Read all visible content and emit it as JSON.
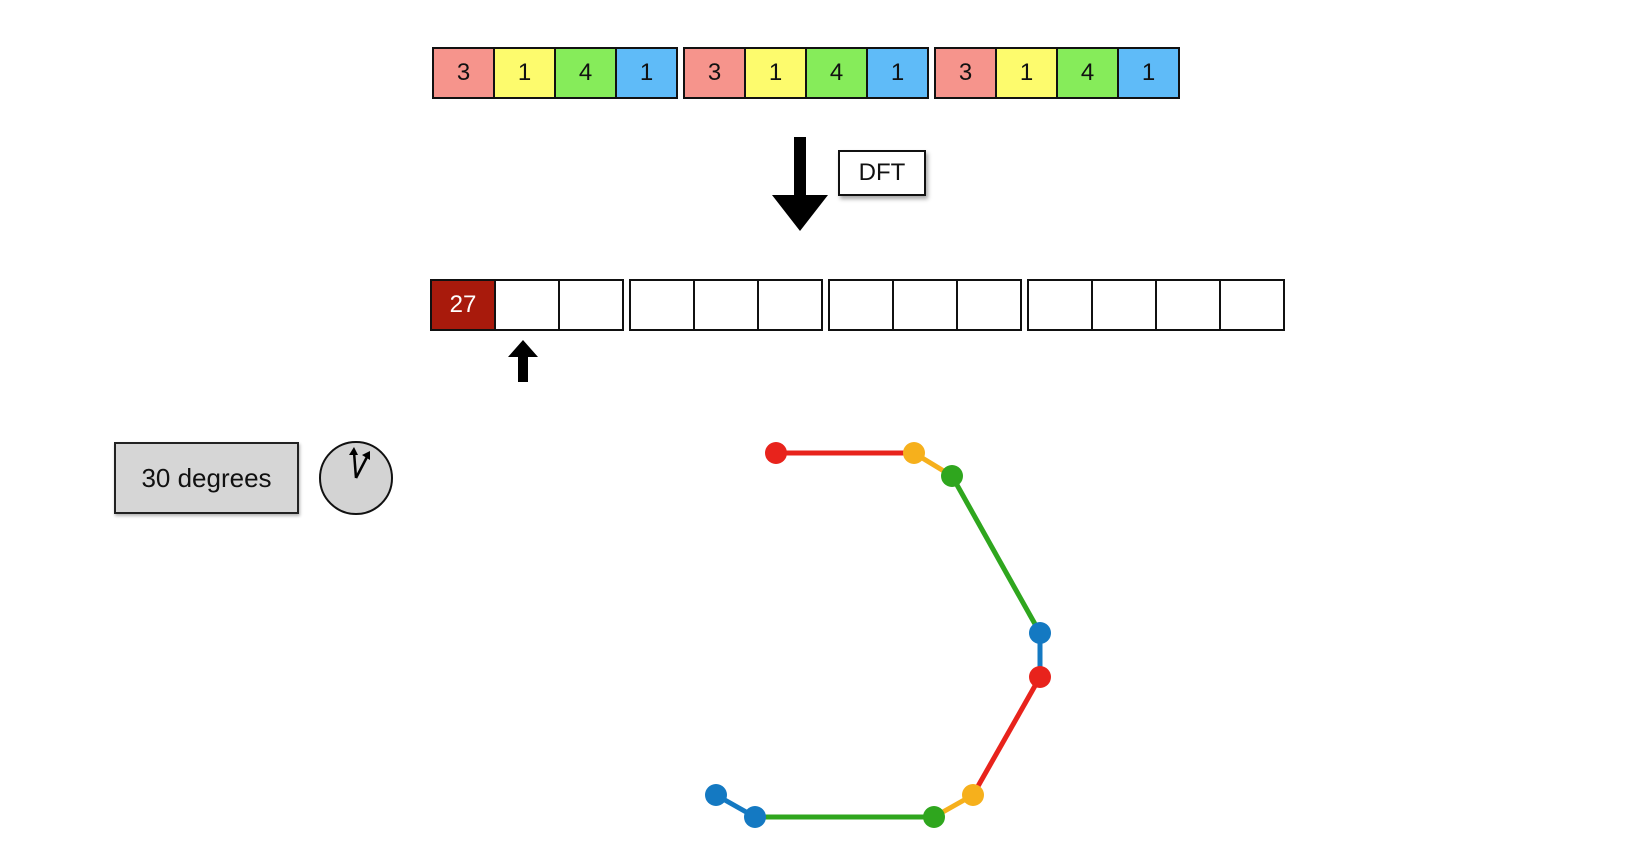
{
  "input_sequence": {
    "values": [
      "3",
      "1",
      "4",
      "1",
      "3",
      "1",
      "4",
      "1",
      "3",
      "1",
      "4",
      "1"
    ],
    "colors": [
      "#f6948c",
      "#fdfb6d",
      "#86ec5a",
      "#5fbbf8"
    ],
    "group_size": 4
  },
  "transform": {
    "label": "DFT"
  },
  "output_sequence": {
    "values": [
      "27",
      "",
      "",
      "",
      "",
      "",
      "",
      "",
      "",
      "",
      "",
      "",
      ""
    ],
    "highlight_color": "#a81a0c",
    "group_sizes": [
      3,
      3,
      3,
      4
    ]
  },
  "rotation": {
    "label": "30 degrees",
    "degrees": 30
  },
  "phasor_colors": {
    "red": "#e8231c",
    "orange": "#f6b01c",
    "green": "#2fa61e",
    "blue": "#1479c2"
  }
}
